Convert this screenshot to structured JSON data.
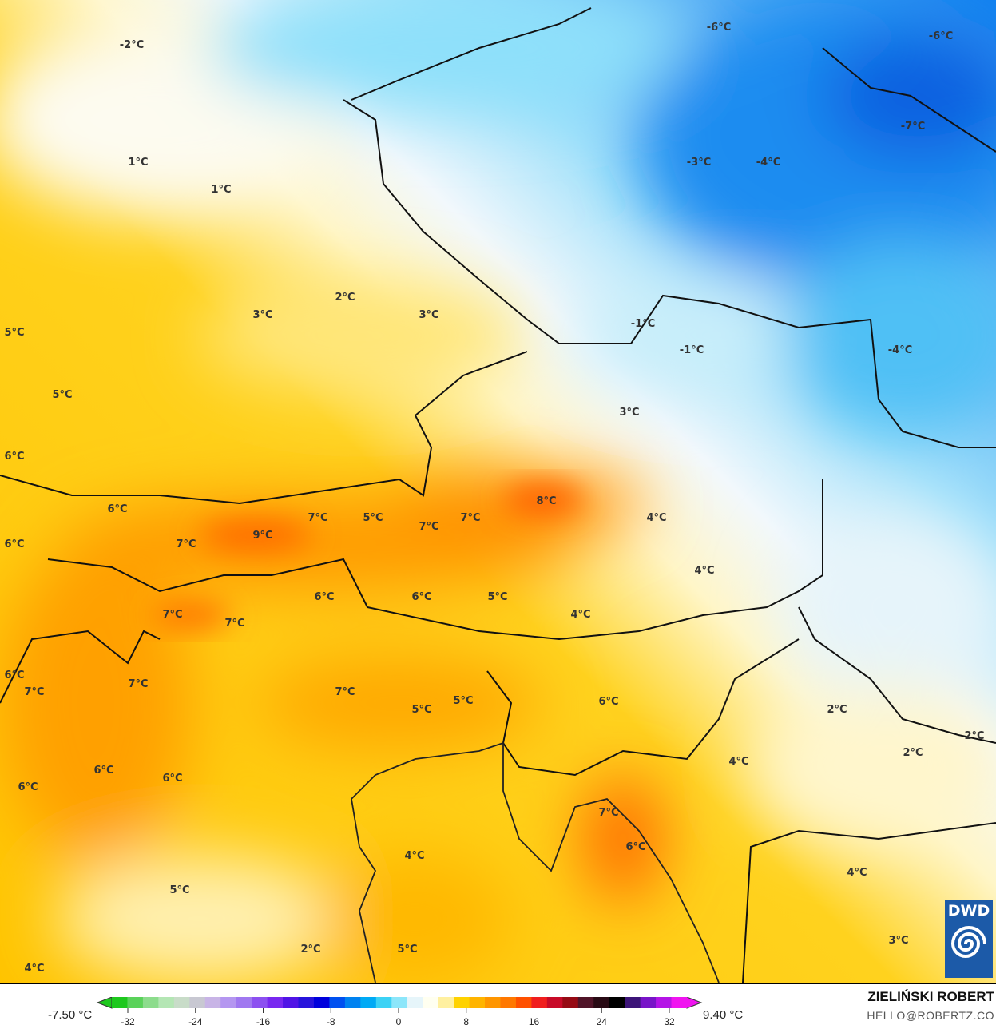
{
  "map": {
    "variable_unit": "°C",
    "labels": [
      "-2°C",
      "-6°C",
      "-6°C",
      "-7°C",
      "1°C",
      "1°C",
      "-3°C",
      "-4°C",
      "2°C",
      "3°C",
      "3°C",
      "5°C",
      "-1°C",
      "-1°C",
      "-4°C",
      "5°C",
      "3°C",
      "6°C",
      "6°C",
      "8°C",
      "7°C",
      "5°C",
      "7°C",
      "7°C",
      "4°C",
      "7°C",
      "9°C",
      "6°C",
      "4°C",
      "6°C",
      "6°C",
      "5°C",
      "4°C",
      "7°C",
      "7°C",
      "6°C",
      "7°C",
      "7°C",
      "7°C",
      "5°C",
      "5°C",
      "6°C",
      "2°C",
      "2°C",
      "2°C",
      "4°C",
      "6°C",
      "6°C",
      "6°C",
      "7°C",
      "6°C",
      "4°C",
      "4°C",
      "5°C",
      "3°C",
      "2°C",
      "5°C",
      "4°C"
    ],
    "logo_text": "DWD"
  },
  "legend": {
    "min_label": "-7.50 °C",
    "max_label": "9.40 °C",
    "ticks": [
      "-32",
      "-24",
      "-16",
      "-8",
      "0",
      "8",
      "16",
      "24",
      "32"
    ],
    "colors": [
      "#1ec81e",
      "#5ad25a",
      "#8cdc8c",
      "#b4e6b4",
      "#c8dcc8",
      "#c8c8d2",
      "#c8b4e6",
      "#b496f0",
      "#a078f0",
      "#8c50f0",
      "#7828f0",
      "#5014e6",
      "#2814dc",
      "#0000dc",
      "#0050f0",
      "#0082f0",
      "#00aaf5",
      "#3cd2f5",
      "#8ce6fa",
      "#e6f5fa",
      "#fffff0",
      "#fff0a0",
      "#ffd200",
      "#ffb400",
      "#ff9600",
      "#ff7800",
      "#ff5000",
      "#f01e1e",
      "#c80a28",
      "#960a14",
      "#501428",
      "#280a14",
      "#000000",
      "#3c1478",
      "#7814c8",
      "#b414e6",
      "#f014f0"
    ],
    "accent_warm": "#ffc800",
    "accent_cold": "#14a0f0"
  },
  "credits": {
    "author": "ZIELIŃSKI ROBERT",
    "email": "HELLO@ROBERTZ.CO"
  }
}
